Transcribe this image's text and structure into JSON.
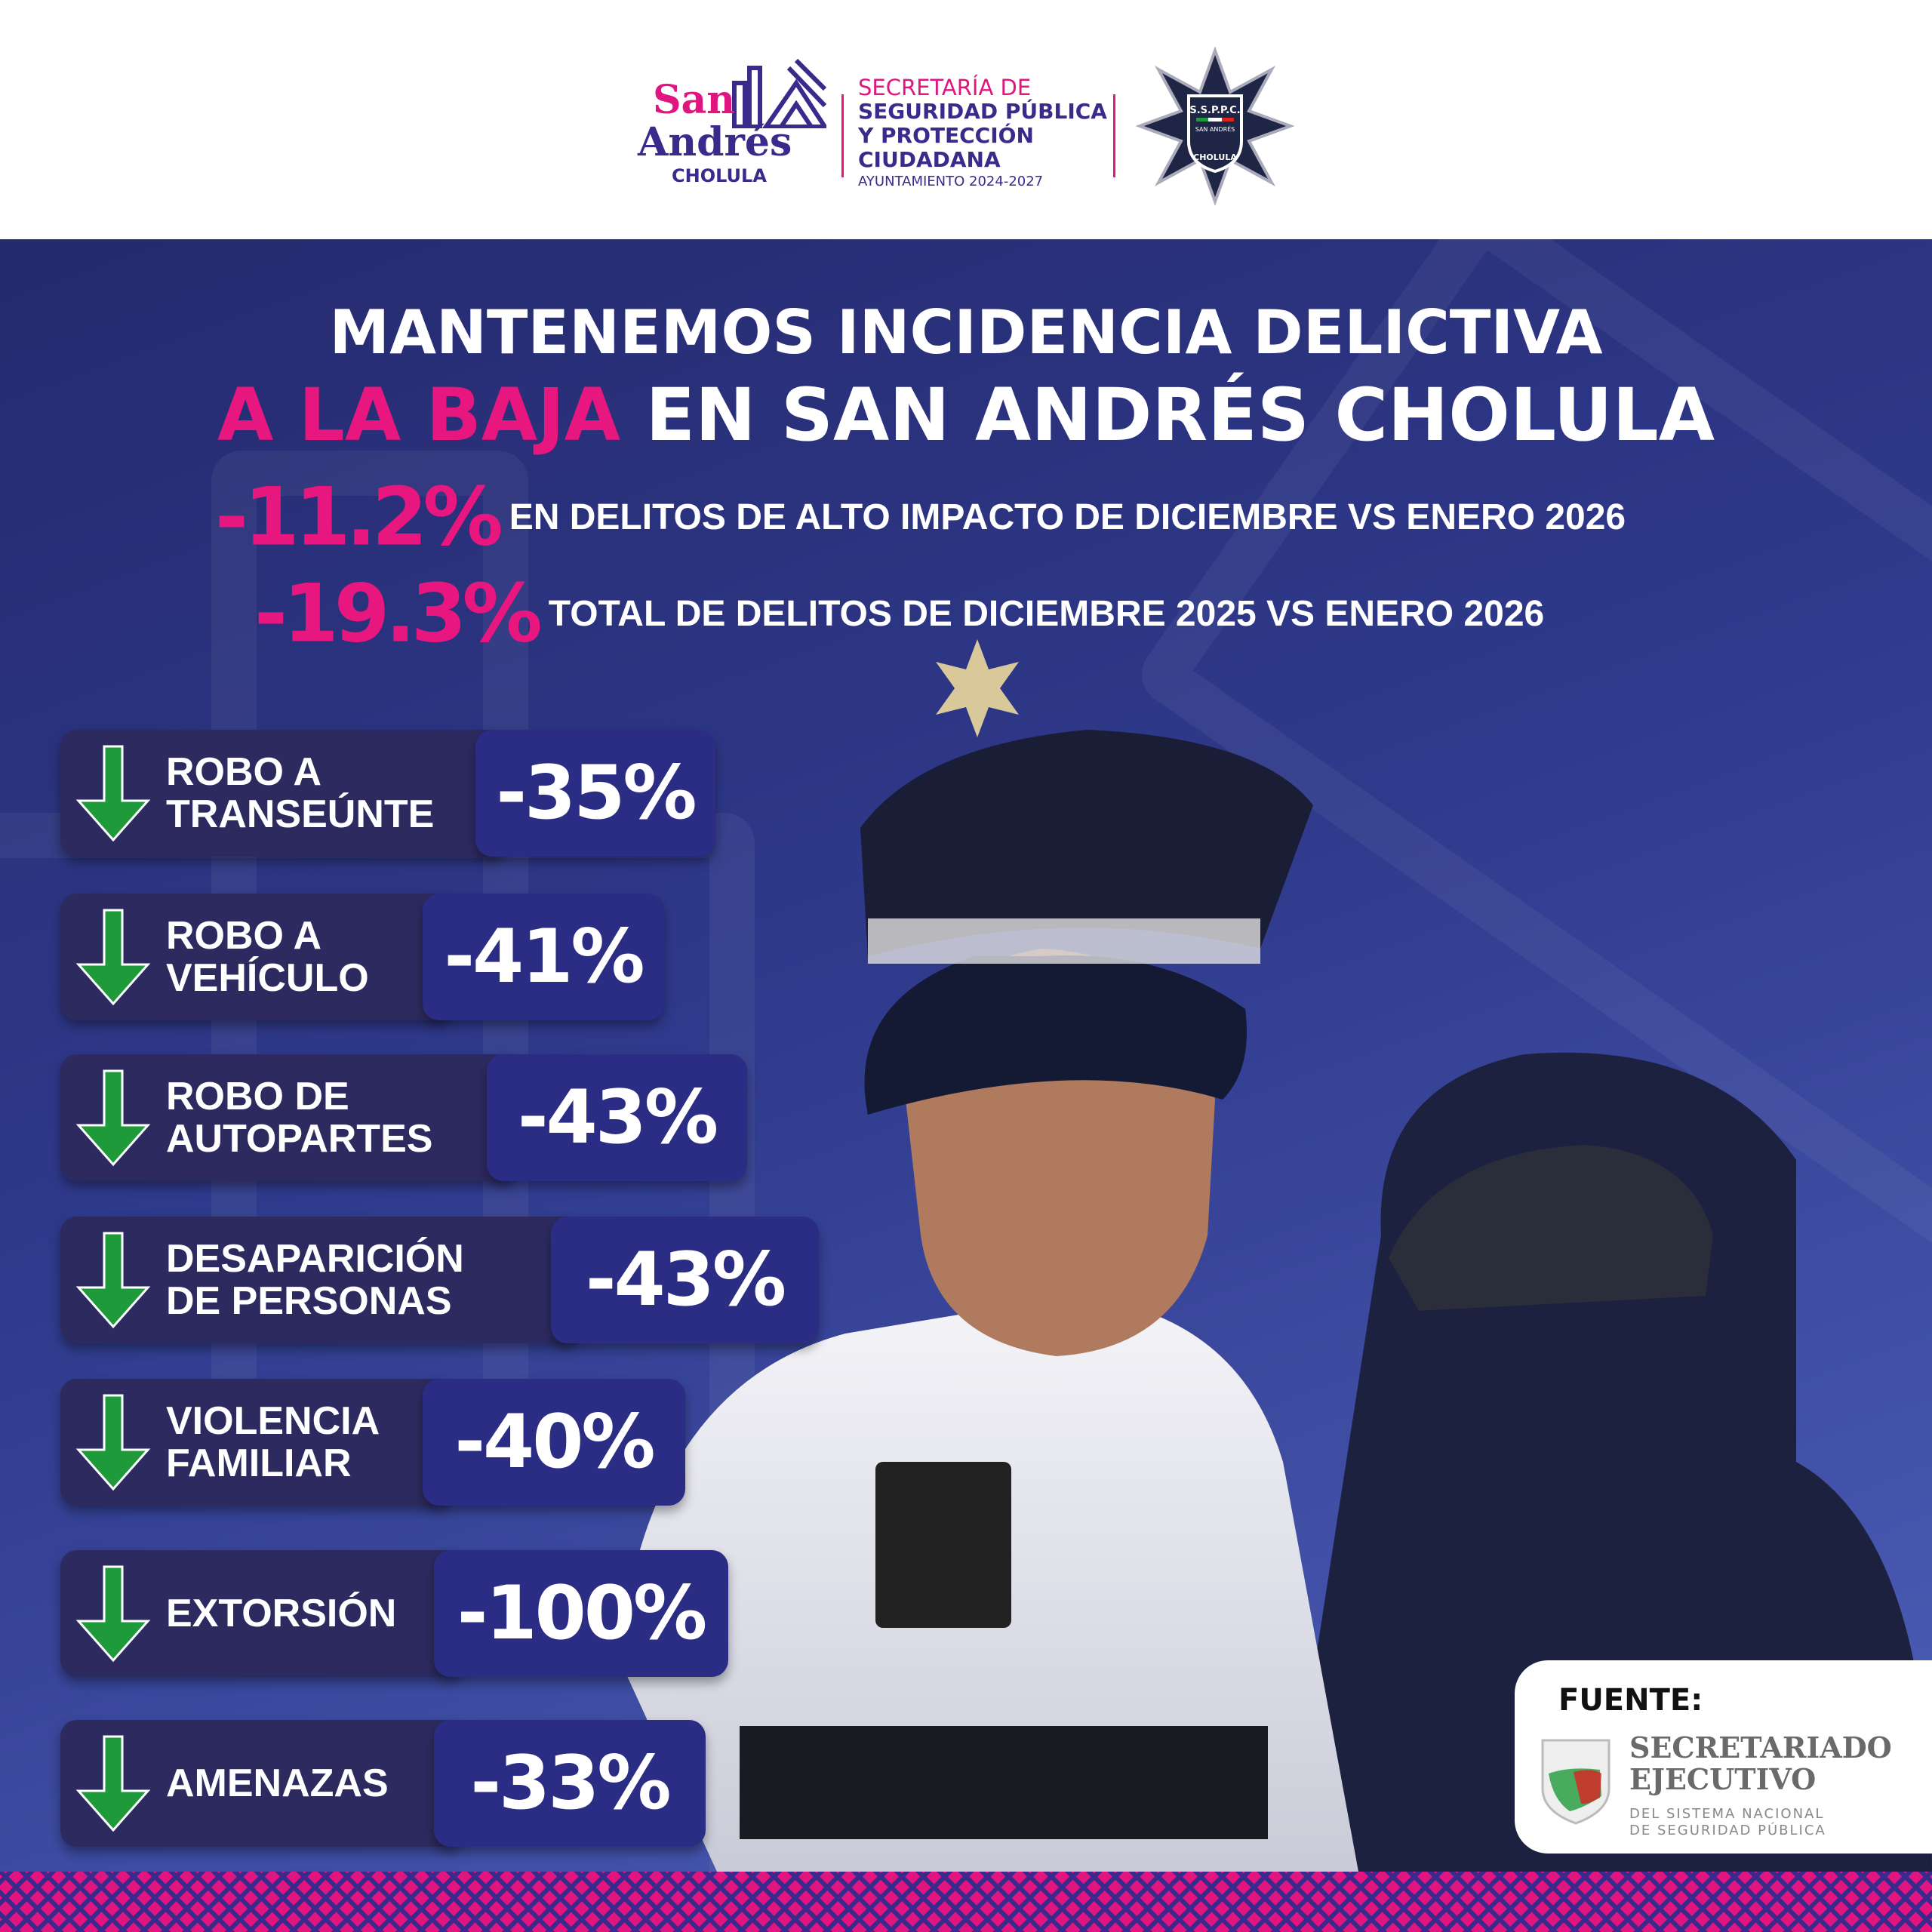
{
  "header": {
    "logo_san_andres": {
      "line1": "San",
      "line2": "Andrés",
      "line3": "CHOLULA"
    },
    "secretaria": {
      "line1": "SECRETARÍA DE",
      "line2": "SEGURIDAD PÚBLICA",
      "line3": "Y PROTECCIÓN",
      "line4": "CIUDADANA",
      "line5": "AYUNTAMIENTO 2024-2027"
    },
    "police_badge": {
      "top": "S.S.P.P.C.",
      "middle": "SAN ANDRÉS",
      "bottom": "CHOLULA"
    }
  },
  "title": {
    "line1": "MANTENEMOS INCIDENCIA DELICTIVA",
    "line2_highlight": "A LA BAJA",
    "line2_rest": " EN SAN ANDRÉS CHOLULA"
  },
  "stats": [
    {
      "value": "-11.2%",
      "text": "EN DELITOS DE ALTO IMPACTO DE DICIEMBRE VS ENERO 2026"
    },
    {
      "value": "-19.3%",
      "text": "TOTAL DE DELITOS DE DICIEMBRE 2025 VS ENERO 2026"
    }
  ],
  "crimes": [
    {
      "label1": "ROBO A",
      "label2": "TRANSEÚNTE",
      "value": "-35%",
      "icon": "arrow-down-icon"
    },
    {
      "label1": "ROBO A",
      "label2": "VEHÍCULO",
      "value": "-41%",
      "icon": "arrow-down-icon"
    },
    {
      "label1": "ROBO DE",
      "label2": "AUTOPARTES",
      "value": "-43%",
      "icon": "arrow-down-icon"
    },
    {
      "label1": "DESAPARICIÓN",
      "label2": "DE PERSONAS",
      "value": "-43%",
      "icon": "arrow-down-icon"
    },
    {
      "label1": "VIOLENCIA",
      "label2": "FAMILIAR",
      "value": "-40%",
      "icon": "arrow-down-icon"
    },
    {
      "label1": "EXTORSIÓN",
      "label2": "",
      "value": "-100%",
      "icon": "arrow-down-icon"
    },
    {
      "label1": "AMENAZAS",
      "label2": "",
      "value": "-33%",
      "icon": "arrow-down-icon"
    }
  ],
  "source": {
    "label": "FUENTE:",
    "org_line1": "SECRETARIADO",
    "org_line2": "EJECUTIVO",
    "org_line3": "DEL SISTEMA NACIONAL",
    "org_line4": "DE SEGURIDAD PÚBLICA",
    "shield_text": "SISTEMA NACIONAL DE SEGURIDAD PÚBLICA"
  },
  "colors": {
    "accent_pink": "#e8177f",
    "navy": "#2d2a60",
    "value_box": "#2b2d84",
    "arrow_green": "#1e9a3a"
  }
}
